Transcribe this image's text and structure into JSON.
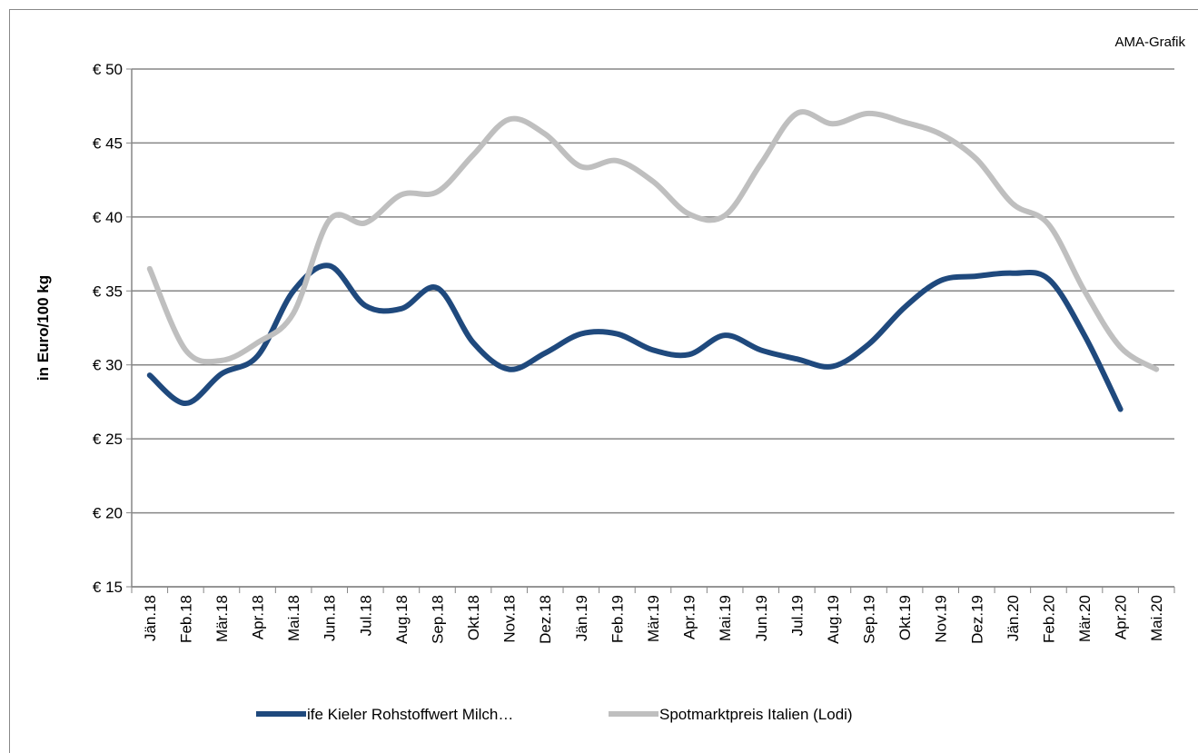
{
  "chart_data": {
    "type": "line",
    "annotation": "AMA-Grafik",
    "y_label": "in Euro/100 kg",
    "categories": [
      "Jän.18",
      "Feb.18",
      "Mär.18",
      "Apr.18",
      "Mai.18",
      "Jun.18",
      "Jul.18",
      "Aug.18",
      "Sep.18",
      "Okt.18",
      "Nov.18",
      "Dez.18",
      "Jän.19",
      "Feb.19",
      "Mär.19",
      "Apr.19",
      "Mai.19",
      "Jun.19",
      "Jul.19",
      "Aug.19",
      "Sep.19",
      "Okt.19",
      "Nov.19",
      "Dez.19",
      "Jän.20",
      "Feb.20",
      "Mär.20",
      "Apr.20",
      "Mai.20"
    ],
    "series": [
      {
        "name": "ife Kieler Rohstoffwert Milch…",
        "color": "#1f497d",
        "values": [
          29.3,
          27.4,
          29.4,
          30.6,
          35.0,
          36.7,
          34.0,
          33.8,
          35.2,
          31.5,
          29.7,
          30.8,
          32.1,
          32.1,
          31.0,
          30.7,
          32.0,
          31.0,
          30.4,
          29.9,
          31.4,
          33.9,
          35.7,
          36.0,
          36.2,
          35.8,
          32.0,
          27.0,
          null
        ]
      },
      {
        "name": "Spotmarktpreis Italien (Lodi)",
        "color": "#bfbfbf",
        "values": [
          36.5,
          31.0,
          30.3,
          31.5,
          33.5,
          39.8,
          39.6,
          41.5,
          41.7,
          44.2,
          46.6,
          45.6,
          43.4,
          43.8,
          42.4,
          40.2,
          40.1,
          43.6,
          47.0,
          46.3,
          47.0,
          46.4,
          45.6,
          43.9,
          40.9,
          39.5,
          35.0,
          31.2,
          29.7
        ]
      }
    ],
    "ylim": [
      15,
      50
    ],
    "yticks": [
      {
        "value": 15,
        "label": "€ 15"
      },
      {
        "value": 20,
        "label": "€ 20"
      },
      {
        "value": 25,
        "label": "€ 25"
      },
      {
        "value": 30,
        "label": "€ 30"
      },
      {
        "value": 35,
        "label": "€ 35"
      },
      {
        "value": 40,
        "label": "€ 40"
      },
      {
        "value": 45,
        "label": "€ 45"
      },
      {
        "value": 50,
        "label": "€ 50"
      }
    ],
    "grid": true,
    "smooth": true,
    "legend": "bottom"
  }
}
